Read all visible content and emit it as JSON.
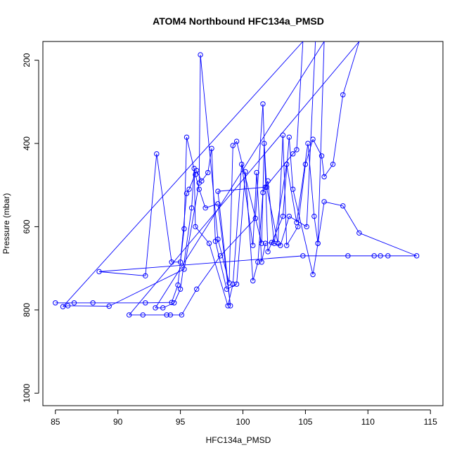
{
  "chart_data": {
    "type": "line",
    "title": "ATOM4 Northbound HFC134a_PMSD",
    "xlabel": "HFC134a_PMSD",
    "ylabel": "Pressure (mbar)",
    "xlim": [
      84,
      116
    ],
    "ylim": [
      1030,
      155
    ],
    "y_reversed": true,
    "xticks": [
      85,
      90,
      95,
      100,
      105,
      110,
      115
    ],
    "yticks": [
      200,
      400,
      600,
      800,
      1000
    ],
    "series_color": "#0000ff",
    "marker": "open-circle",
    "points": [
      [
        85.0,
        783
      ],
      [
        86.5,
        783
      ],
      [
        88.0,
        783
      ],
      [
        92.2,
        783
      ],
      [
        94.3,
        782
      ],
      [
        94.8,
        740
      ],
      [
        95.3,
        605
      ],
      [
        95.5,
        385
      ],
      [
        96.2,
        475
      ],
      [
        96.5,
        510
      ],
      [
        97.0,
        555
      ],
      [
        98.0,
        545
      ],
      [
        99.0,
        790
      ],
      [
        98.0,
        515
      ],
      [
        101.8,
        505
      ],
      [
        104.0,
        425
      ],
      [
        104.3,
        415
      ],
      [
        104.8,
        155
      ],
      [
        85.6,
        792
      ],
      [
        86.0,
        790
      ],
      [
        89.3,
        791
      ],
      [
        95.3,
        702
      ],
      [
        96.5,
        495
      ],
      [
        96.6,
        187
      ],
      [
        98.0,
        630
      ],
      [
        98.9,
        735
      ],
      [
        99.2,
        405
      ],
      [
        99.5,
        395
      ],
      [
        101.5,
        640
      ],
      [
        101.7,
        400
      ],
      [
        101.9,
        505
      ],
      [
        102.8,
        640
      ],
      [
        103.2,
        380
      ],
      [
        103.5,
        645
      ],
      [
        104.4,
        600
      ],
      [
        105.0,
        450
      ],
      [
        105.6,
        390
      ],
      [
        106.3,
        430
      ],
      [
        106.5,
        480
      ],
      [
        107.2,
        450
      ],
      [
        108.0,
        283
      ],
      [
        109.3,
        155
      ],
      [
        90.9,
        812
      ],
      [
        92.0,
        812
      ],
      [
        93.9,
        812
      ],
      [
        94.2,
        812
      ],
      [
        95.1,
        812
      ],
      [
        96.3,
        750
      ],
      [
        98.2,
        670
      ],
      [
        101.0,
        580
      ],
      [
        101.6,
        305
      ],
      [
        102.0,
        660
      ],
      [
        103.2,
        575
      ],
      [
        103.7,
        385
      ],
      [
        104.0,
        510
      ],
      [
        105.6,
        715
      ],
      [
        106.0,
        640
      ],
      [
        106.5,
        540
      ],
      [
        108.0,
        550
      ],
      [
        109.3,
        615
      ],
      [
        113.9,
        670
      ],
      [
        111.6,
        670
      ],
      [
        111.0,
        670
      ],
      [
        110.5,
        670
      ],
      [
        108.4,
        670
      ],
      [
        104.8,
        670
      ],
      [
        88.5,
        708
      ],
      [
        92.2,
        718
      ],
      [
        93.1,
        425
      ],
      [
        94.3,
        685
      ],
      [
        95.0,
        685
      ],
      [
        95.5,
        520
      ],
      [
        95.7,
        510
      ],
      [
        96.3,
        465
      ],
      [
        96.7,
        490
      ],
      [
        97.2,
        470
      ],
      [
        97.5,
        412
      ],
      [
        97.8,
        635
      ],
      [
        98.7,
        750
      ],
      [
        99.5,
        738
      ],
      [
        100.2,
        468
      ],
      [
        100.8,
        730
      ],
      [
        101.2,
        685
      ],
      [
        101.6,
        518
      ],
      [
        102.0,
        490
      ],
      [
        102.5,
        640
      ],
      [
        103.5,
        450
      ],
      [
        104.3,
        590
      ],
      [
        105.2,
        400
      ],
      [
        105.7,
        575
      ],
      [
        106.0,
        640
      ],
      [
        106.5,
        155
      ],
      [
        93.0,
        795
      ],
      [
        93.6,
        795
      ],
      [
        94.5,
        783
      ],
      [
        95.0,
        750
      ],
      [
        95.9,
        555
      ],
      [
        96.1,
        460
      ],
      [
        96.2,
        600
      ],
      [
        97.3,
        640
      ],
      [
        98.8,
        790
      ],
      [
        99.2,
        738
      ],
      [
        99.9,
        450
      ],
      [
        100.8,
        645
      ],
      [
        101.1,
        470
      ],
      [
        101.5,
        685
      ],
      [
        101.8,
        640
      ],
      [
        102.3,
        638
      ],
      [
        103.0,
        645
      ],
      [
        103.7,
        575
      ],
      [
        105.1,
        600
      ],
      [
        105.8,
        155
      ]
    ]
  }
}
